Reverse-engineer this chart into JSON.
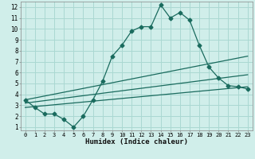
{
  "title": "",
  "xlabel": "Humidex (Indice chaleur)",
  "ylabel": "",
  "bg_color": "#d0eeea",
  "grid_color": "#aad8d2",
  "line_color": "#1a6b5e",
  "xlim": [
    -0.5,
    23.5
  ],
  "ylim": [
    0.7,
    12.5
  ],
  "xticks": [
    0,
    1,
    2,
    3,
    4,
    5,
    6,
    7,
    8,
    9,
    10,
    11,
    12,
    13,
    14,
    15,
    16,
    17,
    18,
    19,
    20,
    21,
    22,
    23
  ],
  "yticks": [
    1,
    2,
    3,
    4,
    5,
    6,
    7,
    8,
    9,
    10,
    11,
    12
  ],
  "main_x": [
    0,
    1,
    2,
    3,
    4,
    5,
    6,
    7,
    8,
    9,
    10,
    11,
    12,
    13,
    14,
    15,
    16,
    17,
    18,
    19,
    20,
    21,
    22,
    23
  ],
  "main_y": [
    3.5,
    2.8,
    2.2,
    2.2,
    1.7,
    1.0,
    2.0,
    3.5,
    5.2,
    7.5,
    8.5,
    9.8,
    10.2,
    10.2,
    12.2,
    11.0,
    11.5,
    10.8,
    8.5,
    6.5,
    5.5,
    4.8,
    4.7,
    4.5
  ],
  "line1_x": [
    0,
    23
  ],
  "line1_y": [
    3.5,
    7.5
  ],
  "line2_x": [
    0,
    23
  ],
  "line2_y": [
    3.2,
    5.8
  ],
  "line3_x": [
    0,
    23
  ],
  "line3_y": [
    2.8,
    4.7
  ],
  "marker_size": 2.5,
  "line_width": 0.9,
  "xlabel_fontsize": 6.5,
  "tick_fontsize_x": 5.0,
  "tick_fontsize_y": 5.5
}
